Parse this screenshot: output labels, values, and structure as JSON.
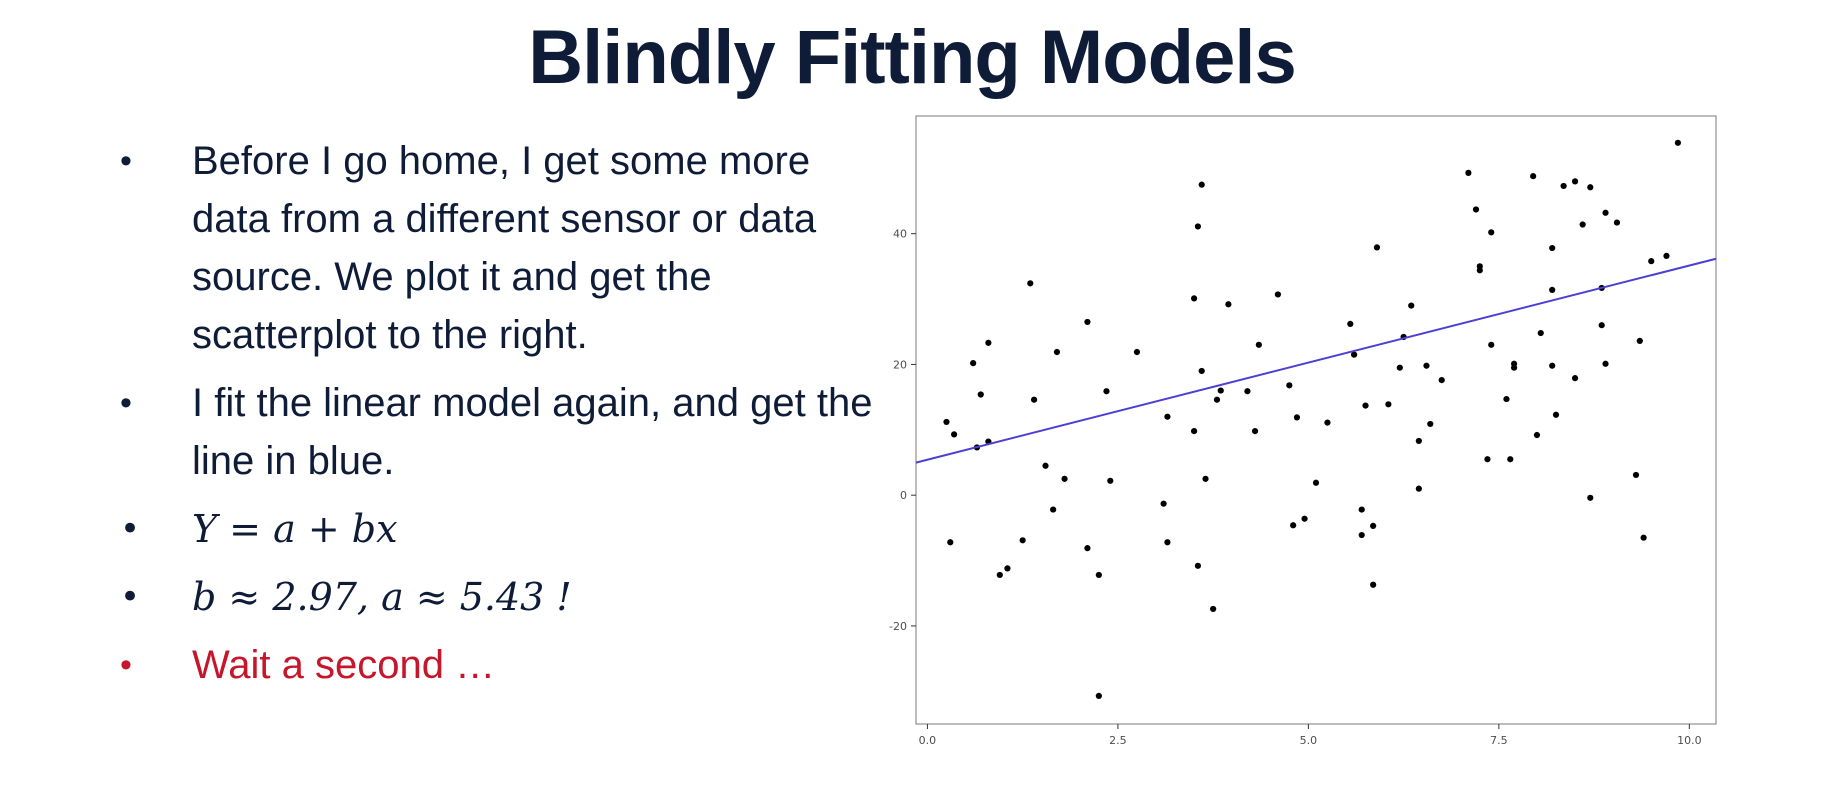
{
  "slide": {
    "title": "Blindly Fitting Models",
    "bullets": [
      "Before I go home, I get some more data from a different sensor or data source. We plot it and get the scatterplot to the right.",
      "I fit the linear model again, and get the line in blue.",
      "Y = a + bx",
      "b ≈ 2.97, a ≈ 5.43 !",
      "Wait a second …"
    ]
  },
  "colors": {
    "title": "#0f1c38",
    "text": "#0f1c38",
    "highlight": "#c6162b",
    "fit_line": "#4b3fd4",
    "points": "#000000",
    "panel_border": "#7a7a7a"
  },
  "chart_data": {
    "type": "scatter",
    "xlim": [
      -0.15,
      10.35
    ],
    "ylim": [
      -35,
      58
    ],
    "x_ticks": [
      0.0,
      2.5,
      5.0,
      7.5,
      10.0
    ],
    "x_tick_labels": [
      "0.0",
      "2.5",
      "5.0",
      "7.5",
      "10.0"
    ],
    "y_ticks": [
      -20,
      0,
      20,
      40
    ],
    "y_tick_labels": [
      "-20",
      "0",
      "20",
      "40"
    ],
    "grid": false,
    "fit_line": {
      "slope": 2.97,
      "intercept": 5.43,
      "x_range": [
        -0.15,
        10.35
      ]
    },
    "points": [
      [
        0.25,
        11.2
      ],
      [
        0.3,
        -7.2
      ],
      [
        0.35,
        9.3
      ],
      [
        0.6,
        20.2
      ],
      [
        0.65,
        7.3
      ],
      [
        0.7,
        15.4
      ],
      [
        0.8,
        8.2
      ],
      [
        0.8,
        23.3
      ],
      [
        0.95,
        -12.2
      ],
      [
        1.05,
        -11.2
      ],
      [
        1.25,
        -6.9
      ],
      [
        1.35,
        32.4
      ],
      [
        1.4,
        14.6
      ],
      [
        1.55,
        4.5
      ],
      [
        1.65,
        -2.2
      ],
      [
        1.7,
        21.9
      ],
      [
        1.8,
        2.5
      ],
      [
        2.1,
        -8.1
      ],
      [
        2.1,
        26.5
      ],
      [
        2.25,
        -12.2
      ],
      [
        2.25,
        -30.7
      ],
      [
        2.35,
        15.9
      ],
      [
        2.4,
        2.2
      ],
      [
        2.75,
        21.9
      ],
      [
        3.1,
        -1.3
      ],
      [
        3.15,
        -7.2
      ],
      [
        3.15,
        12.0
      ],
      [
        3.5,
        9.8
      ],
      [
        3.5,
        30.1
      ],
      [
        3.55,
        -10.8
      ],
      [
        3.55,
        41.1
      ],
      [
        3.6,
        47.5
      ],
      [
        3.6,
        19.0
      ],
      [
        3.65,
        2.5
      ],
      [
        3.75,
        -17.4
      ],
      [
        3.8,
        14.6
      ],
      [
        3.85,
        16.0
      ],
      [
        3.95,
        29.2
      ],
      [
        4.2,
        15.9
      ],
      [
        4.3,
        9.8
      ],
      [
        4.35,
        23.0
      ],
      [
        4.6,
        30.7
      ],
      [
        4.75,
        16.8
      ],
      [
        4.8,
        -4.6
      ],
      [
        4.85,
        11.9
      ],
      [
        4.95,
        -3.6
      ],
      [
        5.1,
        1.9
      ],
      [
        5.25,
        11.1
      ],
      [
        5.55,
        26.2
      ],
      [
        5.6,
        21.5
      ],
      [
        5.7,
        -2.2
      ],
      [
        5.7,
        -6.1
      ],
      [
        5.75,
        13.7
      ],
      [
        5.85,
        -4.7
      ],
      [
        5.85,
        -13.7
      ],
      [
        5.9,
        37.9
      ],
      [
        6.05,
        13.9
      ],
      [
        6.2,
        19.5
      ],
      [
        6.25,
        24.2
      ],
      [
        6.35,
        29.0
      ],
      [
        6.45,
        1.0
      ],
      [
        6.45,
        8.3
      ],
      [
        6.55,
        19.8
      ],
      [
        6.6,
        10.9
      ],
      [
        6.75,
        17.6
      ],
      [
        7.1,
        49.3
      ],
      [
        7.2,
        43.7
      ],
      [
        7.25,
        35.0
      ],
      [
        7.25,
        34.4
      ],
      [
        7.35,
        5.5
      ],
      [
        7.4,
        23.0
      ],
      [
        7.4,
        40.2
      ],
      [
        7.6,
        14.7
      ],
      [
        7.65,
        5.5
      ],
      [
        7.7,
        19.5
      ],
      [
        7.7,
        20.1
      ],
      [
        7.95,
        48.8
      ],
      [
        8.0,
        9.2
      ],
      [
        8.05,
        24.8
      ],
      [
        8.2,
        19.8
      ],
      [
        8.2,
        31.4
      ],
      [
        8.2,
        37.8
      ],
      [
        8.25,
        12.3
      ],
      [
        8.35,
        47.3
      ],
      [
        8.5,
        48.0
      ],
      [
        8.5,
        17.9
      ],
      [
        8.6,
        41.4
      ],
      [
        8.7,
        47.1
      ],
      [
        8.7,
        -0.4
      ],
      [
        8.85,
        31.7
      ],
      [
        8.85,
        26.0
      ],
      [
        8.9,
        20.1
      ],
      [
        8.9,
        43.2
      ],
      [
        9.05,
        41.7
      ],
      [
        9.3,
        3.1
      ],
      [
        9.35,
        23.6
      ],
      [
        9.4,
        -6.5
      ],
      [
        9.5,
        35.8
      ],
      [
        9.7,
        36.6
      ],
      [
        9.85,
        53.9
      ]
    ]
  }
}
